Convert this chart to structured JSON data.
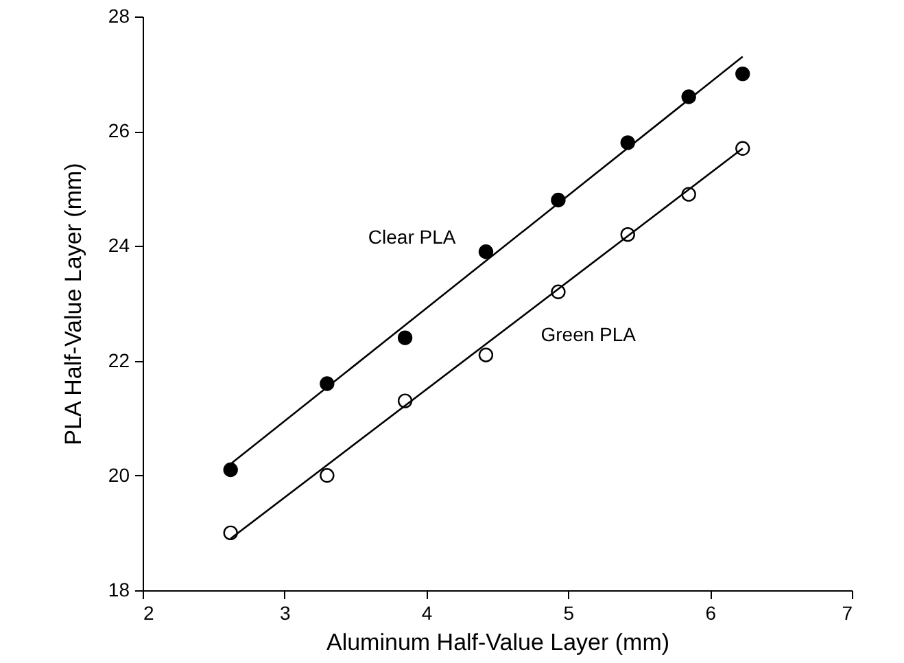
{
  "chart_data": {
    "type": "scatter",
    "xlabel": "Aluminum Half-Value Layer (mm)",
    "ylabel": "PLA Half-Value Layer (mm)",
    "xlim": [
      2,
      7
    ],
    "xticks": [
      2,
      3,
      4,
      5,
      6,
      7
    ],
    "ylim": [
      18,
      28
    ],
    "yticks": [
      18,
      20,
      22,
      24,
      26,
      28
    ],
    "grid": false,
    "legend": false,
    "marker": "circle",
    "series": [
      {
        "name": "Clear PLA",
        "color": "#000000",
        "x": [
          2.62,
          3.3,
          3.85,
          4.42,
          4.93,
          5.42,
          5.85,
          6.23
        ],
        "values": [
          20.1,
          21.6,
          22.4,
          23.9,
          24.8,
          25.8,
          26.6,
          27.0
        ]
      },
      {
        "name": "Green PLA",
        "color": "#ffffff",
        "x": [
          2.62,
          3.3,
          3.85,
          4.42,
          4.93,
          5.42,
          5.85,
          6.23
        ],
        "values": [
          19.0,
          20.0,
          21.3,
          22.1,
          23.2,
          24.2,
          24.9,
          25.7
        ]
      },
      {
        "type": "line",
        "color": "#000000",
        "marker": "none",
        "x": [
          2.62,
          6.23
        ],
        "values": [
          20.2,
          27.3
        ]
      },
      {
        "type": "line",
        "color": "#000000",
        "marker": "none",
        "x": [
          2.62,
          6.23
        ],
        "values": [
          18.9,
          25.7
        ]
      }
    ]
  }
}
